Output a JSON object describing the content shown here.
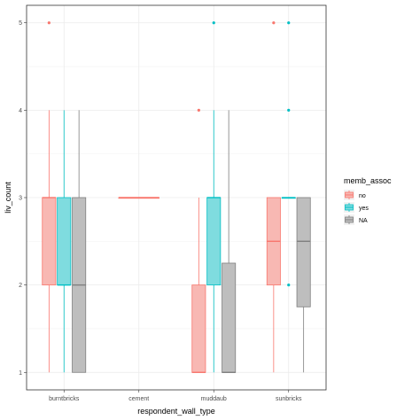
{
  "chart_data": {
    "type": "boxplot",
    "xlabel": "respondent_wall_type",
    "ylabel": "liv_count",
    "categories": [
      "burntbricks",
      "cement",
      "muddaub",
      "sunbricks"
    ],
    "y_ticks": [
      "1",
      "2",
      "3",
      "4",
      "5"
    ],
    "ylim": [
      0.8,
      5.2
    ],
    "grid": true,
    "legend": {
      "title": "memb_assoc",
      "position": "right",
      "items": [
        {
          "label": "no",
          "color": "#F8766D",
          "fill": "#F8B8B3"
        },
        {
          "label": "yes",
          "color": "#00BFC4",
          "fill": "#7FDCDF"
        },
        {
          "label": "NA",
          "color": "#7F7F7F",
          "fill": "#BEBEBE"
        }
      ]
    },
    "series": [
      {
        "name": "no",
        "boxes": [
          {
            "category": "burntbricks",
            "min": 1,
            "q1": 2,
            "median": 3,
            "q3": 3,
            "max": 4,
            "outliers": [
              5
            ]
          },
          {
            "category": "cement",
            "min": 3,
            "q1": 3,
            "median": 3,
            "q3": 3,
            "max": 3,
            "outliers": []
          },
          {
            "category": "muddaub",
            "min": 1,
            "q1": 1,
            "median": 1,
            "q3": 2,
            "max": 3,
            "outliers": [
              4
            ]
          },
          {
            "category": "sunbricks",
            "min": 1,
            "q1": 2,
            "median": 2.5,
            "q3": 3,
            "max": 3,
            "outliers": [
              5
            ]
          }
        ]
      },
      {
        "name": "yes",
        "boxes": [
          {
            "category": "burntbricks",
            "min": 1,
            "q1": 2,
            "median": 2,
            "q3": 3,
            "max": 4,
            "outliers": []
          },
          {
            "category": "muddaub",
            "min": 1,
            "q1": 2,
            "median": 3,
            "q3": 3,
            "max": 4,
            "outliers": [
              5
            ]
          },
          {
            "category": "sunbricks",
            "min": 3,
            "q1": 3,
            "median": 3,
            "q3": 3,
            "max": 3,
            "outliers": [
              2,
              4,
              5
            ]
          }
        ]
      },
      {
        "name": "NA",
        "boxes": [
          {
            "category": "burntbricks",
            "min": 1,
            "q1": 1,
            "median": 2,
            "q3": 3,
            "max": 4,
            "outliers": []
          },
          {
            "category": "muddaub",
            "min": 1,
            "q1": 1,
            "median": 1,
            "q3": 2.25,
            "max": 4,
            "outliers": []
          },
          {
            "category": "sunbricks",
            "min": 1,
            "q1": 1.75,
            "median": 2.5,
            "q3": 3,
            "max": 3,
            "outliers": []
          }
        ]
      }
    ]
  }
}
